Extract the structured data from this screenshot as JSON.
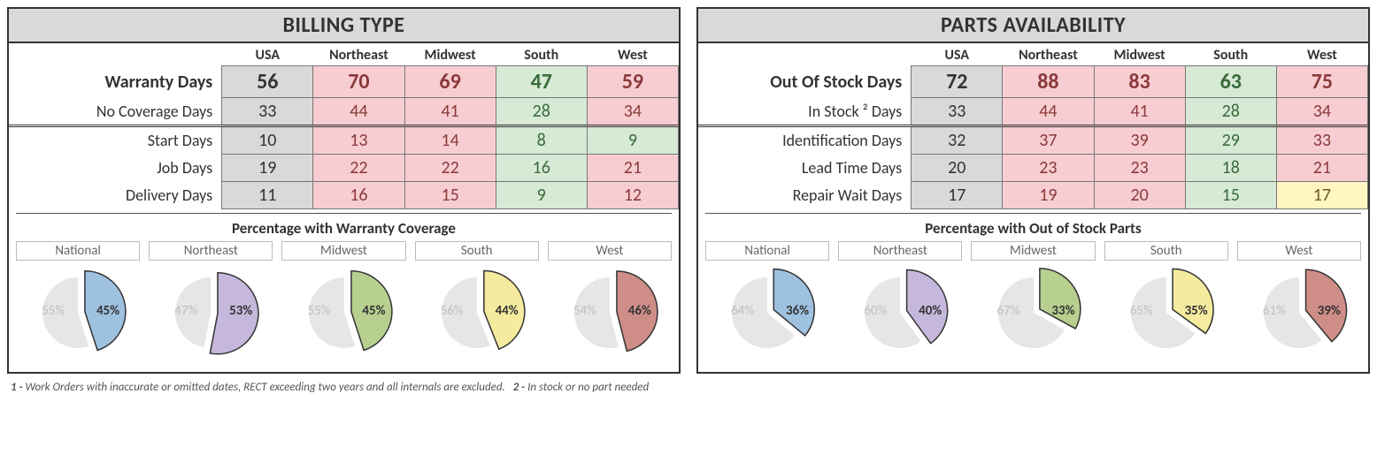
{
  "colors": {
    "gray": "#d9d9d9",
    "pink": "#f7cdd2",
    "green": "#d6ead6",
    "yellow": "#fff6c2",
    "pie_rest": "#e6e6e6",
    "pie_border": "#333333",
    "national_blue": "#9fc1e0",
    "northeast_purple": "#c6b8dc",
    "midwest_green": "#b7cf8f",
    "south_yellow": "#f4eb9e",
    "west_red": "#cf8d88"
  },
  "panels": [
    {
      "title": "BILLING TYPE",
      "columns": [
        "USA",
        "Northeast",
        "Midwest",
        "South",
        "West"
      ],
      "col_color_class": [
        "gray",
        "pink",
        "pink",
        "green",
        "pink"
      ],
      "sections": [
        {
          "rows": [
            {
              "label": "Warranty Days",
              "bold": true,
              "values": [
                56,
                70,
                69,
                47,
                59
              ],
              "cell_class": [
                "gray",
                "pink",
                "pink",
                "green",
                "pink"
              ]
            },
            {
              "label": "No Coverage Days",
              "bold": false,
              "values": [
                33,
                44,
                41,
                28,
                34
              ],
              "cell_class": [
                "gray",
                "pink",
                "pink",
                "green",
                "pink"
              ]
            }
          ]
        },
        {
          "rows": [
            {
              "label": "Start Days",
              "bold": false,
              "values": [
                10,
                13,
                14,
                8,
                9
              ],
              "cell_class": [
                "gray",
                "pink",
                "pink",
                "green",
                "green"
              ]
            },
            {
              "label": "Job Days",
              "bold": false,
              "values": [
                19,
                22,
                22,
                16,
                21
              ],
              "cell_class": [
                "gray",
                "pink",
                "pink",
                "green",
                "pink"
              ]
            },
            {
              "label": "Delivery Days",
              "bold": false,
              "values": [
                11,
                16,
                15,
                9,
                12
              ],
              "cell_class": [
                "gray",
                "pink",
                "pink",
                "green",
                "pink"
              ]
            }
          ]
        }
      ],
      "chart": {
        "title": "Percentage with Warranty Coverage",
        "pies": [
          {
            "label": "National",
            "pct": 45,
            "color_key": "national_blue"
          },
          {
            "label": "Northeast",
            "pct": 53,
            "color_key": "northeast_purple"
          },
          {
            "label": "Midwest",
            "pct": 45,
            "color_key": "midwest_green"
          },
          {
            "label": "South",
            "pct": 44,
            "color_key": "south_yellow"
          },
          {
            "label": "West",
            "pct": 46,
            "color_key": "west_red"
          }
        ]
      }
    },
    {
      "title": "PARTS AVAILABILITY",
      "columns": [
        "USA",
        "Northeast",
        "Midwest",
        "South",
        "West"
      ],
      "col_color_class": [
        "gray",
        "pink",
        "pink",
        "green",
        "pink"
      ],
      "sections": [
        {
          "rows": [
            {
              "label": "Out Of Stock Days",
              "bold": true,
              "values": [
                72,
                88,
                83,
                63,
                75
              ],
              "cell_class": [
                "gray",
                "pink",
                "pink",
                "green",
                "pink"
              ]
            },
            {
              "label": "In Stock ² Days",
              "bold": false,
              "values": [
                33,
                44,
                41,
                28,
                34
              ],
              "cell_class": [
                "gray",
                "pink",
                "pink",
                "green",
                "pink"
              ]
            }
          ]
        },
        {
          "rows": [
            {
              "label": "Identification Days",
              "bold": false,
              "values": [
                32,
                37,
                39,
                29,
                33
              ],
              "cell_class": [
                "gray",
                "pink",
                "pink",
                "green",
                "pink"
              ]
            },
            {
              "label": "Lead Time Days",
              "bold": false,
              "values": [
                20,
                23,
                23,
                18,
                21
              ],
              "cell_class": [
                "gray",
                "pink",
                "pink",
                "green",
                "pink"
              ]
            },
            {
              "label": "Repair Wait Days",
              "bold": false,
              "values": [
                17,
                19,
                20,
                15,
                17
              ],
              "cell_class": [
                "gray",
                "pink",
                "pink",
                "green",
                "yellow"
              ]
            }
          ]
        }
      ],
      "chart": {
        "title": "Percentage with Out of Stock Parts",
        "pies": [
          {
            "label": "National",
            "pct": 36,
            "color_key": "national_blue"
          },
          {
            "label": "Northeast",
            "pct": 40,
            "color_key": "northeast_purple"
          },
          {
            "label": "Midwest",
            "pct": 33,
            "color_key": "midwest_green"
          },
          {
            "label": "South",
            "pct": 35,
            "color_key": "south_yellow"
          },
          {
            "label": "West",
            "pct": 39,
            "color_key": "west_red"
          }
        ]
      }
    }
  ],
  "footnotes": [
    {
      "num": "1",
      "text": "Work Orders with inaccurate or omitted dates, RECT exceeding two years and all internals are excluded."
    },
    {
      "num": "2",
      "text": "In stock or no part needed"
    }
  ]
}
